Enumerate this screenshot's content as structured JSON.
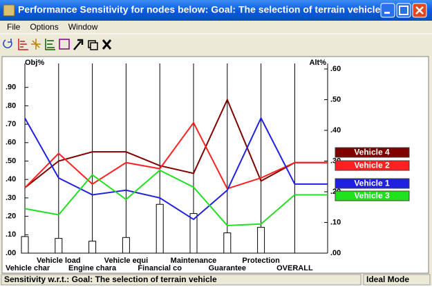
{
  "window": {
    "title": "Performance Sensitivity for nodes below: Goal: The selection of terrain vehicle",
    "menu": [
      "File",
      "Options",
      "Window"
    ],
    "status": "Sensitivity w.r.t.: Goal: The selection of terrain vehicle",
    "mode": "Ideal Mode"
  },
  "chart_data": {
    "type": "performance-sensitivity",
    "ylabel": "Obj%",
    "y2label": "Alt%",
    "categories": [
      "Vehicle char",
      "Vehicle load",
      "Engine chara",
      "Vehicle equi",
      "Financial co",
      "Maintenance",
      "Guarantee",
      "Protection",
      "OVERALL"
    ],
    "ylim": [
      0,
      1.0
    ],
    "yticks": [
      {
        "value": 0,
        "label": ".00"
      },
      {
        "value": 0.1,
        "label": ".10"
      },
      {
        "value": 0.2,
        "label": ".20"
      },
      {
        "value": 0.3,
        "label": ".30"
      },
      {
        "value": 0.4,
        "label": ".40"
      },
      {
        "value": 0.5,
        "label": ".50"
      },
      {
        "value": 0.6,
        "label": ".60"
      },
      {
        "value": 0.7,
        "label": ".70"
      },
      {
        "value": 0.8,
        "label": ".80"
      },
      {
        "value": 0.9,
        "label": ".90"
      }
    ],
    "y2lim": [
      0,
      0.6
    ],
    "y2ticks": [
      {
        "value": 0,
        "label": ".00"
      },
      {
        "value": 0.1,
        "label": ".10"
      },
      {
        "value": 0.2,
        "label": ".20"
      },
      {
        "value": 0.3,
        "label": ".30"
      },
      {
        "value": 0.4,
        "label": ".40"
      },
      {
        "value": 0.5,
        "label": ".50"
      },
      {
        "value": 0.6,
        "label": ".60"
      }
    ],
    "weights": [
      0.09,
      0.08,
      0.065,
      0.085,
      0.265,
      0.215,
      0.11,
      0.14
    ],
    "series": [
      {
        "name": "Vehicle 4",
        "color": "#800000",
        "axis": "y2",
        "values": [
          0.213,
          0.3,
          0.33,
          0.33,
          0.285,
          0.26,
          0.5,
          0.235,
          0.295
        ]
      },
      {
        "name": "Vehicle 2",
        "color": "#ff2020",
        "axis": "y2",
        "values": [
          0.213,
          0.325,
          0.225,
          0.295,
          0.275,
          0.425,
          0.21,
          0.245,
          0.295
        ]
      },
      {
        "name": "Vehicle 1",
        "color": "#2020e0",
        "axis": "y2",
        "values": [
          0.44,
          0.245,
          0.19,
          0.205,
          0.18,
          0.11,
          0.205,
          0.44,
          0.225
        ]
      },
      {
        "name": "Vehicle 3",
        "color": "#20e020",
        "axis": "y2",
        "values": [
          0.145,
          0.125,
          0.255,
          0.175,
          0.27,
          0.215,
          0.09,
          0.095,
          0.19
        ]
      }
    ]
  }
}
